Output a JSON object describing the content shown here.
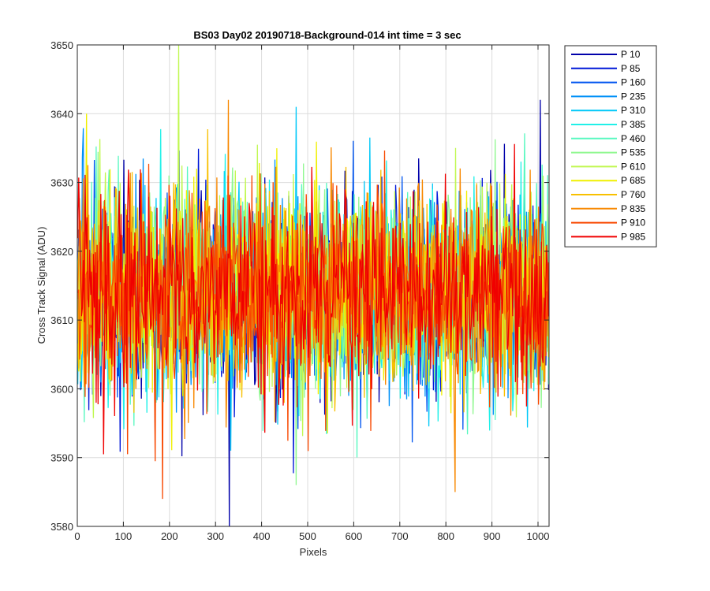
{
  "chart_data": {
    "type": "line",
    "title": "BS03 Day02 20190718-Background-014 int time = 3 sec",
    "xlabel": "Pixels",
    "ylabel": "Cross Track Signal (ADU)",
    "xlim": [
      0,
      1024
    ],
    "ylim": [
      3580,
      3650
    ],
    "xticks": [
      0,
      100,
      200,
      300,
      400,
      500,
      600,
      700,
      800,
      900,
      1000
    ],
    "yticks": [
      3580,
      3590,
      3600,
      3610,
      3620,
      3630,
      3640,
      3650
    ],
    "grid": true,
    "legend_position": "outside-top-right",
    "x_range": [
      1,
      1024
    ],
    "mean_signal": 3614,
    "series": [
      {
        "name": "P 10",
        "color": "#0000aa"
      },
      {
        "name": "P 85",
        "color": "#0018d8"
      },
      {
        "name": "P 160",
        "color": "#0055f0"
      },
      {
        "name": "P 235",
        "color": "#0090f8"
      },
      {
        "name": "P 310",
        "color": "#00c8f8"
      },
      {
        "name": "P 385",
        "color": "#20f0e8"
      },
      {
        "name": "P 460",
        "color": "#58f8c0"
      },
      {
        "name": "P 535",
        "color": "#90f890"
      },
      {
        "name": "P 610",
        "color": "#c0f850"
      },
      {
        "name": "P 685",
        "color": "#f0f000"
      },
      {
        "name": "P 760",
        "color": "#f8c000"
      },
      {
        "name": "P 835",
        "color": "#f88800"
      },
      {
        "name": "P 910",
        "color": "#f84800"
      },
      {
        "name": "P 985",
        "color": "#f00000"
      }
    ],
    "extremes": [
      {
        "series": "P 10",
        "x": 330,
        "y": 3580
      },
      {
        "series": "P 10",
        "x": 1005,
        "y": 3642
      },
      {
        "series": "P 610",
        "x": 220,
        "y": 3650
      },
      {
        "series": "P 835",
        "x": 328,
        "y": 3642
      },
      {
        "series": "P 910",
        "x": 185,
        "y": 3584
      },
      {
        "series": "P 835",
        "x": 820,
        "y": 3585
      },
      {
        "series": "P 535",
        "x": 475,
        "y": 3586
      },
      {
        "series": "P 310",
        "x": 475,
        "y": 3641
      },
      {
        "series": "P 685",
        "x": 20,
        "y": 3640
      }
    ]
  }
}
